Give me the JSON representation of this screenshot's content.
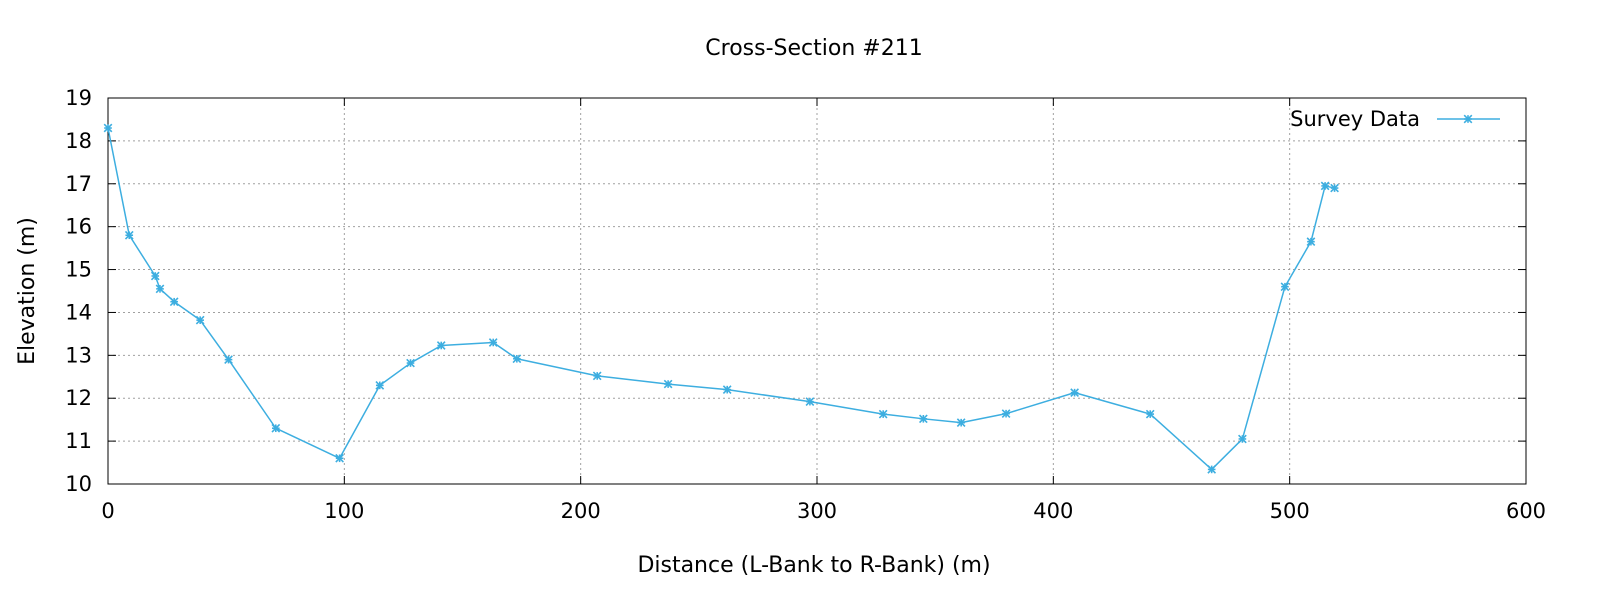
{
  "chart_data": {
    "type": "line",
    "title": "Cross-Section #211",
    "xlabel": "Distance (L-Bank to R-Bank) (m)",
    "ylabel": "Elevation (m)",
    "xlim": [
      0,
      600
    ],
    "ylim": [
      10,
      19
    ],
    "xticks": [
      0,
      100,
      200,
      300,
      400,
      500,
      600
    ],
    "yticks": [
      10,
      11,
      12,
      13,
      14,
      15,
      16,
      17,
      18,
      19
    ],
    "grid": true,
    "legend_position": "top-right",
    "series": [
      {
        "name": "Survey Data",
        "color": "#3daee0",
        "marker": "asterisk",
        "x": [
          0,
          9,
          20,
          22,
          28,
          39,
          51,
          71,
          98,
          115,
          128,
          141,
          163,
          173,
          207,
          237,
          262,
          297,
          328,
          345,
          361,
          380,
          409,
          441,
          467,
          480,
          498,
          509,
          515,
          519
        ],
        "y": [
          18.3,
          15.8,
          14.85,
          14.55,
          14.25,
          13.82,
          12.9,
          11.3,
          10.6,
          12.3,
          12.82,
          13.23,
          13.3,
          12.92,
          12.52,
          12.33,
          12.2,
          11.92,
          11.63,
          11.52,
          11.43,
          11.64,
          12.13,
          11.63,
          10.34,
          11.05,
          14.6,
          15.65,
          16.95,
          16.9
        ]
      }
    ]
  }
}
